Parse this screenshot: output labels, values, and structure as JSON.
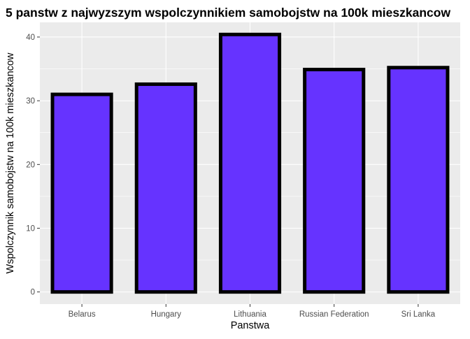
{
  "chart_data": {
    "type": "bar",
    "title": "5 panstw z najwyzszym wspolczynnikiem samobojstw na 100k mieszkancow",
    "xlabel": "Panstwa",
    "ylabel": "Wspolczynnik samobojstw na 100k mieszkancow",
    "categories": [
      "Belarus",
      "Hungary",
      "Lithuania",
      "Russian Federation",
      "Sri Lanka"
    ],
    "values": [
      31.0,
      32.6,
      40.4,
      34.9,
      35.2
    ],
    "ylim": [
      -1.9,
      42.3
    ],
    "yticks": [
      0,
      10,
      20,
      30,
      40
    ],
    "grid": true,
    "legend": "none",
    "colors": {
      "bar_fill": "#6633FF",
      "bar_stroke": "#000000",
      "panel_background": "#EBEBEB",
      "grid": "#FFFFFF",
      "tick_mark": "#333333"
    }
  }
}
